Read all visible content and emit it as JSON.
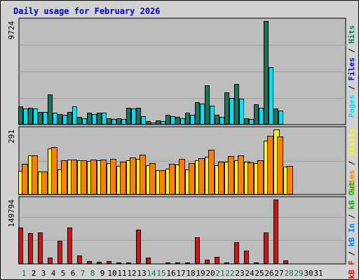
{
  "chart_data": [
    {
      "type": "bar",
      "title": "Daily usage for February 2026",
      "panel": "hits-files-pages",
      "y_tick_label": "9724",
      "ylim": [
        0,
        9724
      ],
      "categories": [
        "1",
        "2",
        "3",
        "4",
        "5",
        "6",
        "7",
        "8",
        "9",
        "10",
        "11",
        "12",
        "13",
        "14",
        "15",
        "16",
        "17",
        "18",
        "19",
        "20",
        "21",
        "22",
        "23",
        "24",
        "25",
        "26",
        "27",
        "28",
        "29",
        "30",
        "31"
      ],
      "series": [
        {
          "name": "Hits",
          "color": "#00805c",
          "values": [
            1700,
            1600,
            1200,
            2800,
            1000,
            1200,
            700,
            1100,
            1100,
            600,
            600,
            1600,
            1600,
            300,
            400,
            900,
            700,
            1100,
            2100,
            3700,
            900,
            3000,
            3800,
            600,
            1900,
            9724,
            1500,
            0,
            0,
            0,
            0
          ]
        },
        {
          "name": "Files",
          "color": "#0000ff",
          "values": [
            0,
            0,
            0,
            0,
            0,
            0,
            0,
            0,
            0,
            0,
            0,
            0,
            0,
            0,
            0,
            0,
            0,
            0,
            0,
            0,
            0,
            0,
            0,
            0,
            0,
            0,
            0,
            0,
            0,
            0,
            0
          ]
        },
        {
          "name": "Pages",
          "color": "#00e0ff",
          "values": [
            1500,
            1500,
            1200,
            1100,
            900,
            1700,
            600,
            1000,
            1100,
            500,
            500,
            1500,
            800,
            200,
            300,
            800,
            600,
            900,
            2000,
            1800,
            700,
            2500,
            2400,
            500,
            1600,
            5400,
            1300,
            0,
            0,
            0,
            0
          ]
        }
      ]
    },
    {
      "type": "bar",
      "panel": "visits-sites",
      "y_tick_label": "291",
      "ylim": [
        0,
        291
      ],
      "categories": [
        "1",
        "2",
        "3",
        "4",
        "5",
        "6",
        "7",
        "8",
        "9",
        "10",
        "11",
        "12",
        "13",
        "14",
        "15",
        "16",
        "17",
        "18",
        "19",
        "20",
        "21",
        "22",
        "23",
        "24",
        "25",
        "26",
        "27",
        "28",
        "29",
        "30",
        "31"
      ],
      "series": [
        {
          "name": "Visits",
          "color": "#ffff00",
          "values": [
            105,
            175,
            102,
            205,
            114,
            155,
            152,
            150,
            152,
            140,
            129,
            153,
            160,
            131,
            109,
            117,
            133,
            112,
            153,
            170,
            132,
            147,
            153,
            146,
            142,
            240,
            291,
            124,
            0,
            0,
            0
          ]
        },
        {
          "name": "Sites",
          "color": "#ff8000",
          "values": [
            138,
            176,
            103,
            212,
            153,
            155,
            153,
            156,
            158,
            160,
            148,
            167,
            177,
            142,
            110,
            139,
            159,
            142,
            164,
            201,
            148,
            172,
            175,
            144,
            152,
            263,
            260,
            128,
            0,
            0,
            0
          ]
        }
      ]
    },
    {
      "type": "bar",
      "panel": "kbf-kbin-kbout",
      "y_tick_label": "149794",
      "ylim": [
        0,
        149794
      ],
      "categories": [
        "1",
        "2",
        "3",
        "4",
        "5",
        "6",
        "7",
        "8",
        "9",
        "10",
        "11",
        "12",
        "13",
        "14",
        "15",
        "16",
        "17",
        "18",
        "19",
        "20",
        "21",
        "22",
        "23",
        "24",
        "25",
        "26",
        "27",
        "28",
        "29",
        "30",
        "31"
      ],
      "series": [
        {
          "name": "KB F",
          "color": "#ff0000",
          "values": [
            84000,
            72000,
            73000,
            15000,
            53000,
            85000,
            20000,
            7000,
            5000,
            6000,
            4000,
            4000,
            79000,
            15000,
            2000,
            3000,
            4000,
            4000,
            62000,
            9000,
            17000,
            4000,
            50000,
            31000,
            4000,
            74000,
            149794,
            8000,
            0,
            0,
            0
          ]
        },
        {
          "name": "KB In",
          "color": "#0080ff",
          "values": [
            0,
            0,
            0,
            0,
            0,
            0,
            0,
            0,
            0,
            0,
            0,
            0,
            0,
            0,
            0,
            0,
            0,
            0,
            0,
            0,
            0,
            0,
            0,
            0,
            0,
            0,
            0,
            0,
            0,
            0,
            0
          ]
        },
        {
          "name": "KB Out",
          "color": "#00c000",
          "values": [
            0,
            0,
            0,
            0,
            0,
            0,
            0,
            0,
            0,
            0,
            0,
            0,
            0,
            0,
            0,
            0,
            0,
            0,
            0,
            0,
            0,
            0,
            0,
            0,
            0,
            0,
            0,
            0,
            0,
            0,
            0
          ]
        }
      ]
    }
  ],
  "x_labels": [
    {
      "text": "1",
      "weekend": true
    },
    {
      "text": "2",
      "weekend": false
    },
    {
      "text": "3",
      "weekend": false
    },
    {
      "text": "4",
      "weekend": false
    },
    {
      "text": "5",
      "weekend": false
    },
    {
      "text": "6",
      "weekend": false
    },
    {
      "text": "7",
      "weekend": true
    },
    {
      "text": "8",
      "weekend": true
    },
    {
      "text": "9",
      "weekend": false
    },
    {
      "text": "10",
      "weekend": false
    },
    {
      "text": "11",
      "weekend": false
    },
    {
      "text": "12",
      "weekend": false
    },
    {
      "text": "13",
      "weekend": false
    },
    {
      "text": "14",
      "weekend": true
    },
    {
      "text": "15",
      "weekend": true
    },
    {
      "text": "16",
      "weekend": false
    },
    {
      "text": "17",
      "weekend": false
    },
    {
      "text": "18",
      "weekend": false
    },
    {
      "text": "19",
      "weekend": false
    },
    {
      "text": "20",
      "weekend": false
    },
    {
      "text": "21",
      "weekend": true
    },
    {
      "text": "22",
      "weekend": true
    },
    {
      "text": "23",
      "weekend": false
    },
    {
      "text": "24",
      "weekend": false
    },
    {
      "text": "25",
      "weekend": false
    },
    {
      "text": "26",
      "weekend": false
    },
    {
      "text": "27",
      "weekend": false
    },
    {
      "text": "28",
      "weekend": true
    },
    {
      "text": "29",
      "weekend": true
    },
    {
      "text": "30",
      "weekend": false
    },
    {
      "text": "31",
      "weekend": false
    }
  ],
  "right_labels": [
    [
      {
        "text": "Pages",
        "color": "#00e0ff"
      },
      {
        "text": " / ",
        "color": "#000000"
      },
      {
        "text": "Files",
        "color": "#0000ff"
      },
      {
        "text": " / ",
        "color": "#000000"
      },
      {
        "text": "Hits",
        "color": "#00805c"
      }
    ],
    [
      {
        "text": "Sites",
        "color": "#ff8000"
      },
      {
        "text": " / ",
        "color": "#000000"
      },
      {
        "text": "Visits",
        "color": "#ffff00"
      }
    ],
    [
      {
        "text": "kB F",
        "color": "#ff0000"
      },
      {
        "text": " / ",
        "color": "#000000"
      },
      {
        "text": "kB In",
        "color": "#0080ff"
      },
      {
        "text": " / ",
        "color": "#000000"
      },
      {
        "text": "kB Out",
        "color": "#00c000"
      }
    ]
  ],
  "colors": {
    "weekday_label": "#000000",
    "weekend_label": "#00805c",
    "title": "#0000c8",
    "background": "#d2d2d2",
    "grid": "#a0a0a0"
  }
}
